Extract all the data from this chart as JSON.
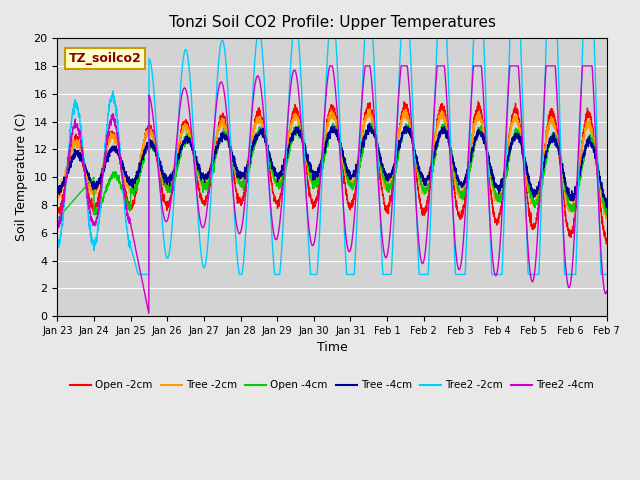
{
  "title": "Tonzi Soil CO2 Profile: Upper Temperatures",
  "xlabel": "Time",
  "ylabel": "Soil Temperature (C)",
  "annotation": "TZ_soilco2",
  "ylim": [
    0,
    20
  ],
  "background_color": "#e8e8e8",
  "plot_bg_color": "#d3d3d3",
  "series_colors": {
    "Open -2cm": "#ff0000",
    "Tree -2cm": "#ff9900",
    "Open -4cm": "#00cc00",
    "Tree -4cm": "#000099",
    "Tree2 -2cm": "#00ccff",
    "Tree2 -4cm": "#cc00cc"
  },
  "x_tick_labels": [
    "Jan 23",
    "Jan 24",
    "Jan 25",
    "Jan 26",
    "Jan 27",
    "Jan 28",
    "Jan 29",
    "Jan 30",
    "Jan 31",
    "Feb 1",
    "Feb 2",
    "Feb 3",
    "Feb 4",
    "Feb 5",
    "Feb 6",
    "Feb 7"
  ],
  "n_points": 3360
}
